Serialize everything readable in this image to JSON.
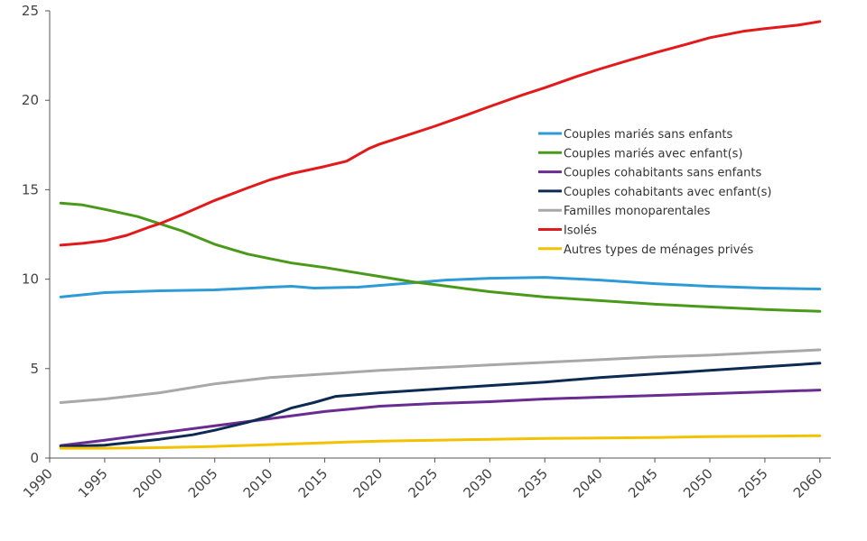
{
  "chart_data": {
    "type": "line",
    "title": "",
    "xlabel": "",
    "ylabel": "",
    "xlim": [
      1990,
      2061
    ],
    "ylim": [
      0,
      25
    ],
    "x_ticks": [
      1990,
      1995,
      2000,
      2005,
      2010,
      2015,
      2020,
      2025,
      2030,
      2035,
      2040,
      2045,
      2050,
      2055,
      2060
    ],
    "y_ticks": [
      0,
      5,
      10,
      15,
      20,
      25
    ],
    "grid": false,
    "legend_position": "right",
    "series": [
      {
        "name": "Couples mariés sans enfants",
        "color": "#2e9bd6",
        "points": [
          [
            1991,
            9.0
          ],
          [
            1995,
            9.25
          ],
          [
            2000,
            9.35
          ],
          [
            2005,
            9.4
          ],
          [
            2010,
            9.55
          ],
          [
            2012,
            9.6
          ],
          [
            2014,
            9.5
          ],
          [
            2018,
            9.55
          ],
          [
            2022,
            9.75
          ],
          [
            2026,
            9.95
          ],
          [
            2030,
            10.05
          ],
          [
            2035,
            10.1
          ],
          [
            2040,
            9.95
          ],
          [
            2045,
            9.75
          ],
          [
            2050,
            9.6
          ],
          [
            2055,
            9.5
          ],
          [
            2060,
            9.45
          ]
        ]
      },
      {
        "name": "Couples mariés avec enfant(s)",
        "color": "#4a9a1a",
        "points": [
          [
            1991,
            14.25
          ],
          [
            1993,
            14.15
          ],
          [
            1995,
            13.9
          ],
          [
            1998,
            13.5
          ],
          [
            2000,
            13.1
          ],
          [
            2002,
            12.7
          ],
          [
            2005,
            11.95
          ],
          [
            2008,
            11.4
          ],
          [
            2010,
            11.15
          ],
          [
            2012,
            10.9
          ],
          [
            2015,
            10.65
          ],
          [
            2018,
            10.35
          ],
          [
            2020,
            10.15
          ],
          [
            2023,
            9.85
          ],
          [
            2025,
            9.7
          ],
          [
            2028,
            9.45
          ],
          [
            2030,
            9.3
          ],
          [
            2035,
            9.0
          ],
          [
            2040,
            8.8
          ],
          [
            2045,
            8.6
          ],
          [
            2050,
            8.45
          ],
          [
            2055,
            8.3
          ],
          [
            2060,
            8.2
          ]
        ]
      },
      {
        "name": "Couples cohabitants sans enfants",
        "color": "#6a2c91",
        "points": [
          [
            1991,
            0.7
          ],
          [
            1995,
            1.0
          ],
          [
            2000,
            1.4
          ],
          [
            2005,
            1.8
          ],
          [
            2010,
            2.2
          ],
          [
            2015,
            2.6
          ],
          [
            2020,
            2.9
          ],
          [
            2025,
            3.05
          ],
          [
            2030,
            3.15
          ],
          [
            2035,
            3.3
          ],
          [
            2040,
            3.4
          ],
          [
            2045,
            3.5
          ],
          [
            2050,
            3.6
          ],
          [
            2055,
            3.7
          ],
          [
            2060,
            3.8
          ]
        ]
      },
      {
        "name": "Couples cohabitants avec enfant(s)",
        "color": "#0d2a52",
        "points": [
          [
            1991,
            0.65
          ],
          [
            1995,
            0.72
          ],
          [
            1997,
            0.85
          ],
          [
            2000,
            1.05
          ],
          [
            2003,
            1.3
          ],
          [
            2005,
            1.55
          ],
          [
            2008,
            2.0
          ],
          [
            2010,
            2.35
          ],
          [
            2012,
            2.8
          ],
          [
            2014,
            3.1
          ],
          [
            2016,
            3.45
          ],
          [
            2020,
            3.65
          ],
          [
            2025,
            3.85
          ],
          [
            2030,
            4.05
          ],
          [
            2035,
            4.25
          ],
          [
            2040,
            4.5
          ],
          [
            2045,
            4.7
          ],
          [
            2050,
            4.9
          ],
          [
            2055,
            5.1
          ],
          [
            2060,
            5.3
          ]
        ]
      },
      {
        "name": "Familles monoparentales",
        "color": "#a8a8a8",
        "points": [
          [
            1991,
            3.1
          ],
          [
            1995,
            3.3
          ],
          [
            2000,
            3.65
          ],
          [
            2005,
            4.15
          ],
          [
            2010,
            4.5
          ],
          [
            2015,
            4.7
          ],
          [
            2020,
            4.9
          ],
          [
            2025,
            5.05
          ],
          [
            2030,
            5.2
          ],
          [
            2035,
            5.35
          ],
          [
            2040,
            5.5
          ],
          [
            2045,
            5.65
          ],
          [
            2050,
            5.75
          ],
          [
            2055,
            5.9
          ],
          [
            2060,
            6.05
          ]
        ]
      },
      {
        "name": "Isolés",
        "color": "#e31a1c",
        "points": [
          [
            1991,
            11.9
          ],
          [
            1993,
            12.0
          ],
          [
            1995,
            12.15
          ],
          [
            1997,
            12.45
          ],
          [
            1999,
            12.9
          ],
          [
            2000,
            13.1
          ],
          [
            2002,
            13.6
          ],
          [
            2005,
            14.4
          ],
          [
            2008,
            15.1
          ],
          [
            2010,
            15.55
          ],
          [
            2012,
            15.9
          ],
          [
            2015,
            16.3
          ],
          [
            2017,
            16.6
          ],
          [
            2019,
            17.3
          ],
          [
            2020,
            17.55
          ],
          [
            2022,
            17.95
          ],
          [
            2025,
            18.55
          ],
          [
            2028,
            19.2
          ],
          [
            2030,
            19.65
          ],
          [
            2033,
            20.3
          ],
          [
            2035,
            20.7
          ],
          [
            2038,
            21.35
          ],
          [
            2040,
            21.75
          ],
          [
            2043,
            22.3
          ],
          [
            2045,
            22.65
          ],
          [
            2048,
            23.15
          ],
          [
            2050,
            23.5
          ],
          [
            2053,
            23.85
          ],
          [
            2055,
            24.0
          ],
          [
            2058,
            24.2
          ],
          [
            2060,
            24.4
          ]
        ]
      },
      {
        "name": "Autres types de ménages privés",
        "color": "#f2c200",
        "points": [
          [
            1991,
            0.55
          ],
          [
            1995,
            0.55
          ],
          [
            2000,
            0.58
          ],
          [
            2005,
            0.65
          ],
          [
            2010,
            0.75
          ],
          [
            2015,
            0.85
          ],
          [
            2020,
            0.95
          ],
          [
            2025,
            1.0
          ],
          [
            2030,
            1.05
          ],
          [
            2035,
            1.1
          ],
          [
            2040,
            1.12
          ],
          [
            2045,
            1.15
          ],
          [
            2050,
            1.2
          ],
          [
            2055,
            1.22
          ],
          [
            2060,
            1.25
          ]
        ]
      }
    ]
  }
}
